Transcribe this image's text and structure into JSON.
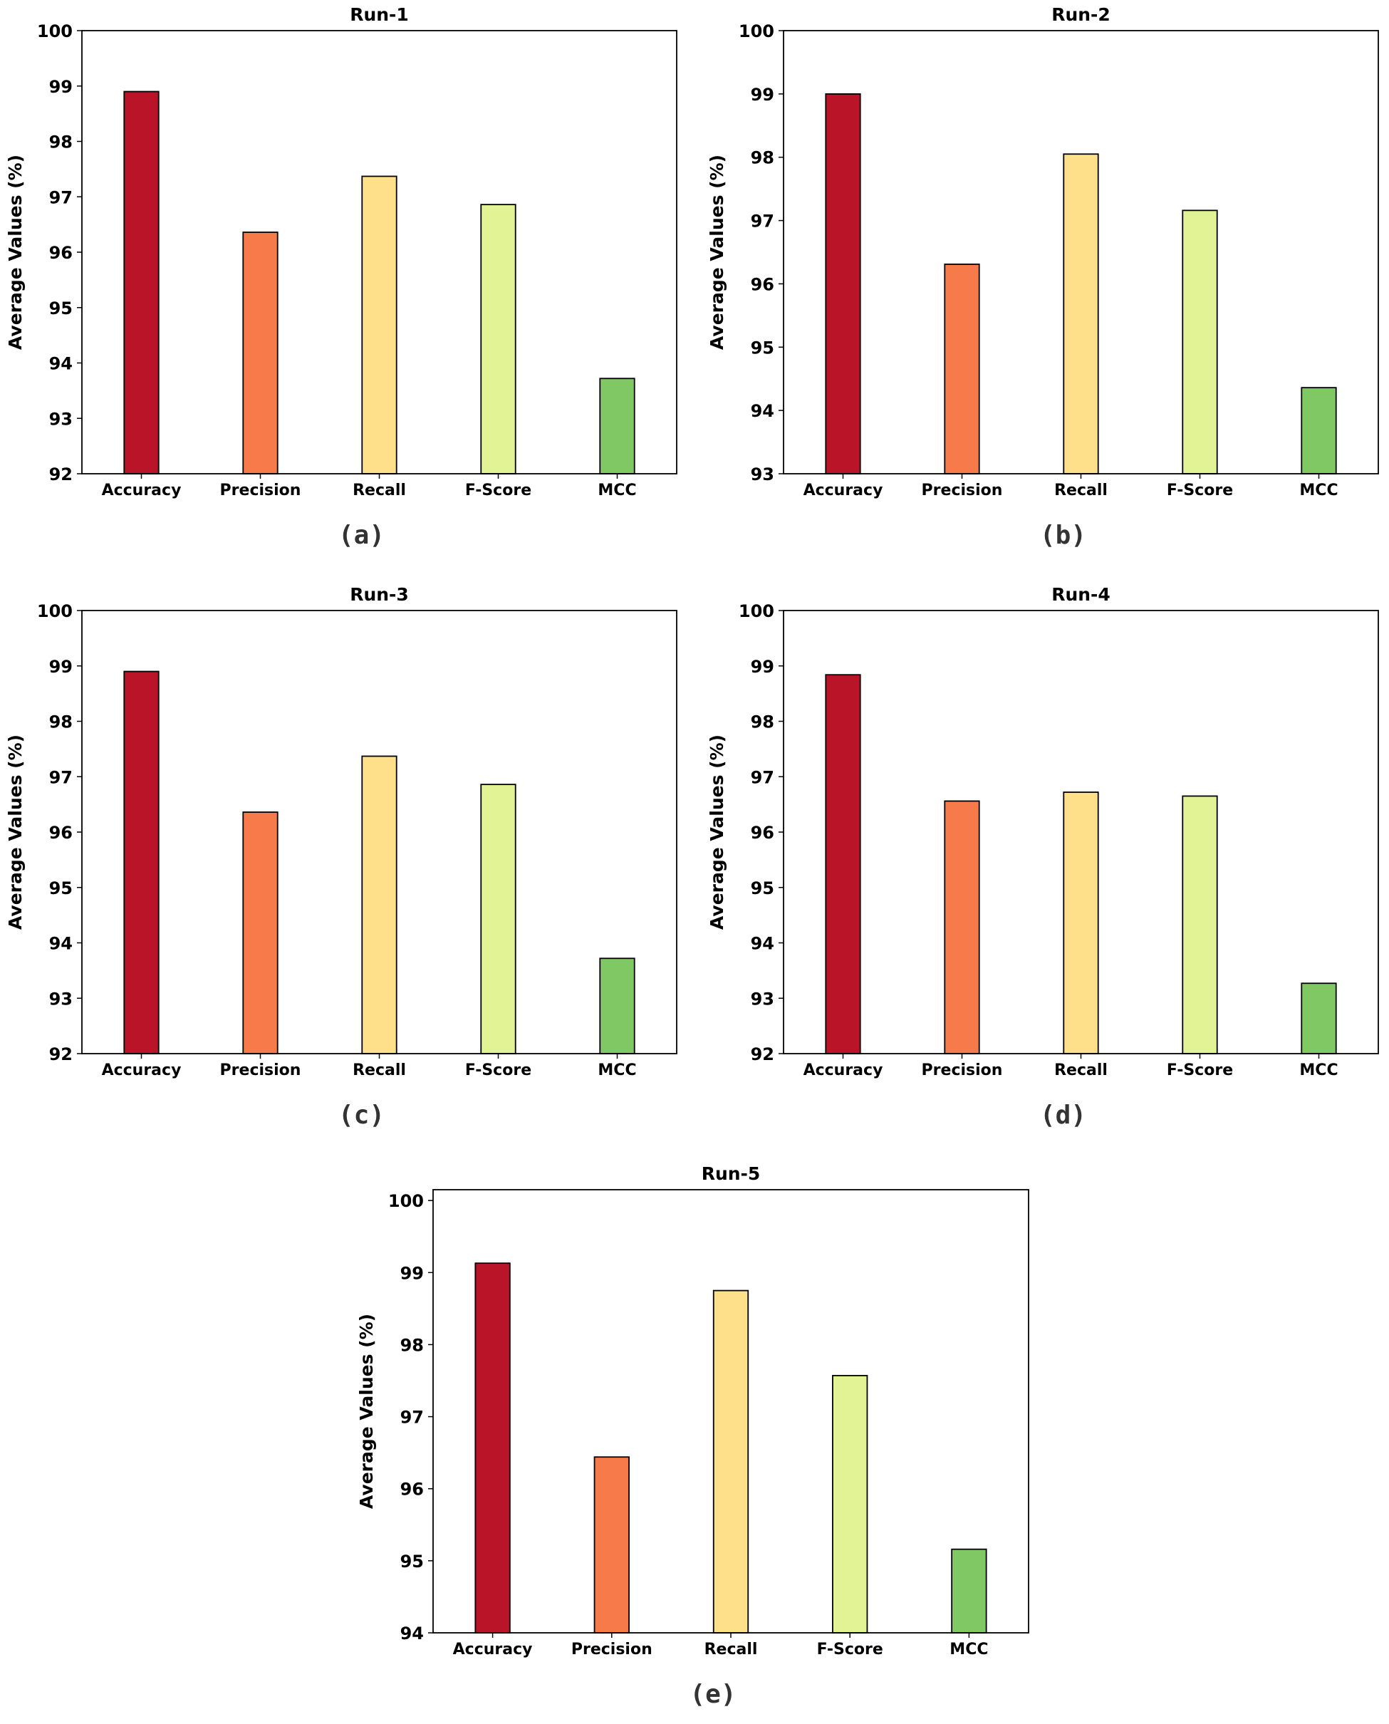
{
  "chart_data": [
    {
      "type": "bar",
      "title": "Run-1",
      "caption": "(a)",
      "categories": [
        "Accuracy",
        "Precision",
        "Recall",
        "F-Score",
        "MCC"
      ],
      "values": [
        98.9,
        96.36,
        97.37,
        96.86,
        93.72
      ],
      "xlabel": "",
      "ylabel": "Average Values (%)",
      "ylim": [
        92,
        100
      ],
      "yticks": [
        "92",
        "93",
        "94",
        "95",
        "96",
        "97",
        "98",
        "99",
        "100"
      ]
    },
    {
      "type": "bar",
      "title": "Run-2",
      "caption": "(b)",
      "categories": [
        "Accuracy",
        "Precision",
        "Recall",
        "F-Score",
        "MCC"
      ],
      "values": [
        99.0,
        96.31,
        98.05,
        97.16,
        94.36
      ],
      "xlabel": "",
      "ylabel": "Average Values (%)",
      "ylim": [
        93,
        100
      ],
      "yticks": [
        "93",
        "94",
        "95",
        "96",
        "97",
        "98",
        "99",
        "100"
      ]
    },
    {
      "type": "bar",
      "title": "Run-3",
      "caption": "(c)",
      "categories": [
        "Accuracy",
        "Precision",
        "Recall",
        "F-Score",
        "MCC"
      ],
      "values": [
        98.9,
        96.36,
        97.37,
        96.86,
        93.72
      ],
      "xlabel": "",
      "ylabel": "Average Values (%)",
      "ylim": [
        92,
        100
      ],
      "yticks": [
        "92",
        "93",
        "94",
        "95",
        "96",
        "97",
        "98",
        "99",
        "100"
      ]
    },
    {
      "type": "bar",
      "title": "Run-4",
      "caption": "(d)",
      "categories": [
        "Accuracy",
        "Precision",
        "Recall",
        "F-Score",
        "MCC"
      ],
      "values": [
        98.84,
        96.56,
        96.72,
        96.65,
        93.27
      ],
      "xlabel": "",
      "ylabel": "Average Values (%)",
      "ylim": [
        92,
        100
      ],
      "yticks": [
        "92",
        "93",
        "94",
        "95",
        "96",
        "97",
        "98",
        "99",
        "100"
      ]
    },
    {
      "type": "bar",
      "title": "Run-5",
      "caption": "(e)",
      "categories": [
        "Accuracy",
        "Precision",
        "Recall",
        "F-Score",
        "MCC"
      ],
      "values": [
        99.13,
        96.44,
        98.75,
        97.57,
        95.16
      ],
      "xlabel": "",
      "ylabel": "Average Values (%)",
      "ylim": [
        94,
        100.15
      ],
      "yticks": [
        "94",
        "95",
        "96",
        "97",
        "98",
        "99",
        "100"
      ]
    }
  ],
  "colors": {
    "bars": [
      "#b91427",
      "#f67a4a",
      "#fedf8a",
      "#e2f396",
      "#7fc864"
    ],
    "edge": "#000000",
    "caption": "#333333"
  }
}
